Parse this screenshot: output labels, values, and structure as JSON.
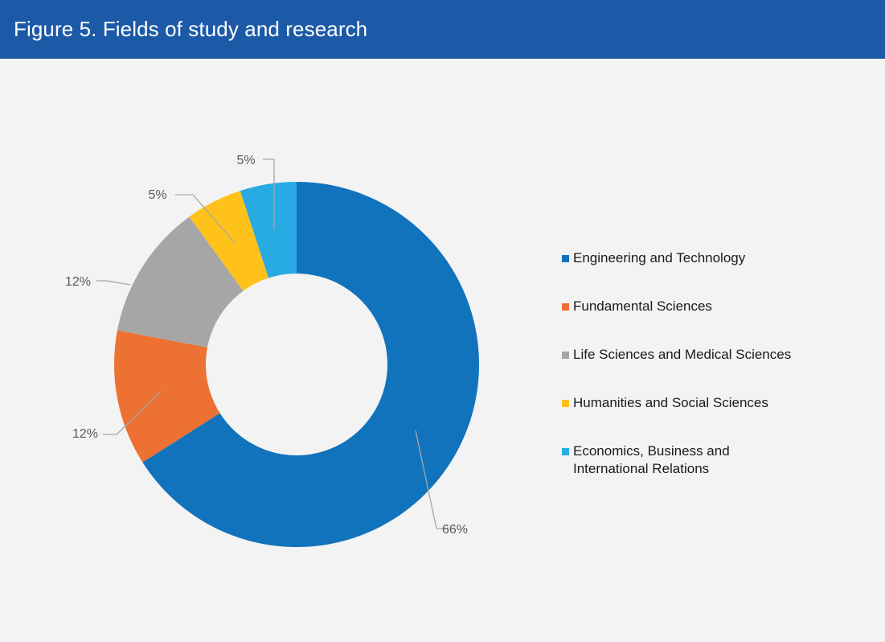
{
  "header": {
    "title": "Figure 5. Fields of study and research",
    "color": "#1c5aa8"
  },
  "chart_data": {
    "type": "pie",
    "variant": "donut",
    "title": "Figure 5. Fields of study and research",
    "legend_position": "right",
    "categories": [
      "Engineering and Technology",
      "Fundamental Sciences",
      "Life Sciences and Medical Sciences",
      "Humanities and Social Sciences",
      "Economics, Business and International Relations"
    ],
    "values": [
      66,
      12,
      12,
      5,
      5
    ],
    "labels": [
      "66%",
      "12%",
      "12%",
      "5%",
      "5%"
    ],
    "colors": [
      "#1173bc",
      "#ec7133",
      "#a6a6a6",
      "#ffc21a",
      "#27abe2"
    ],
    "unit": "%"
  }
}
